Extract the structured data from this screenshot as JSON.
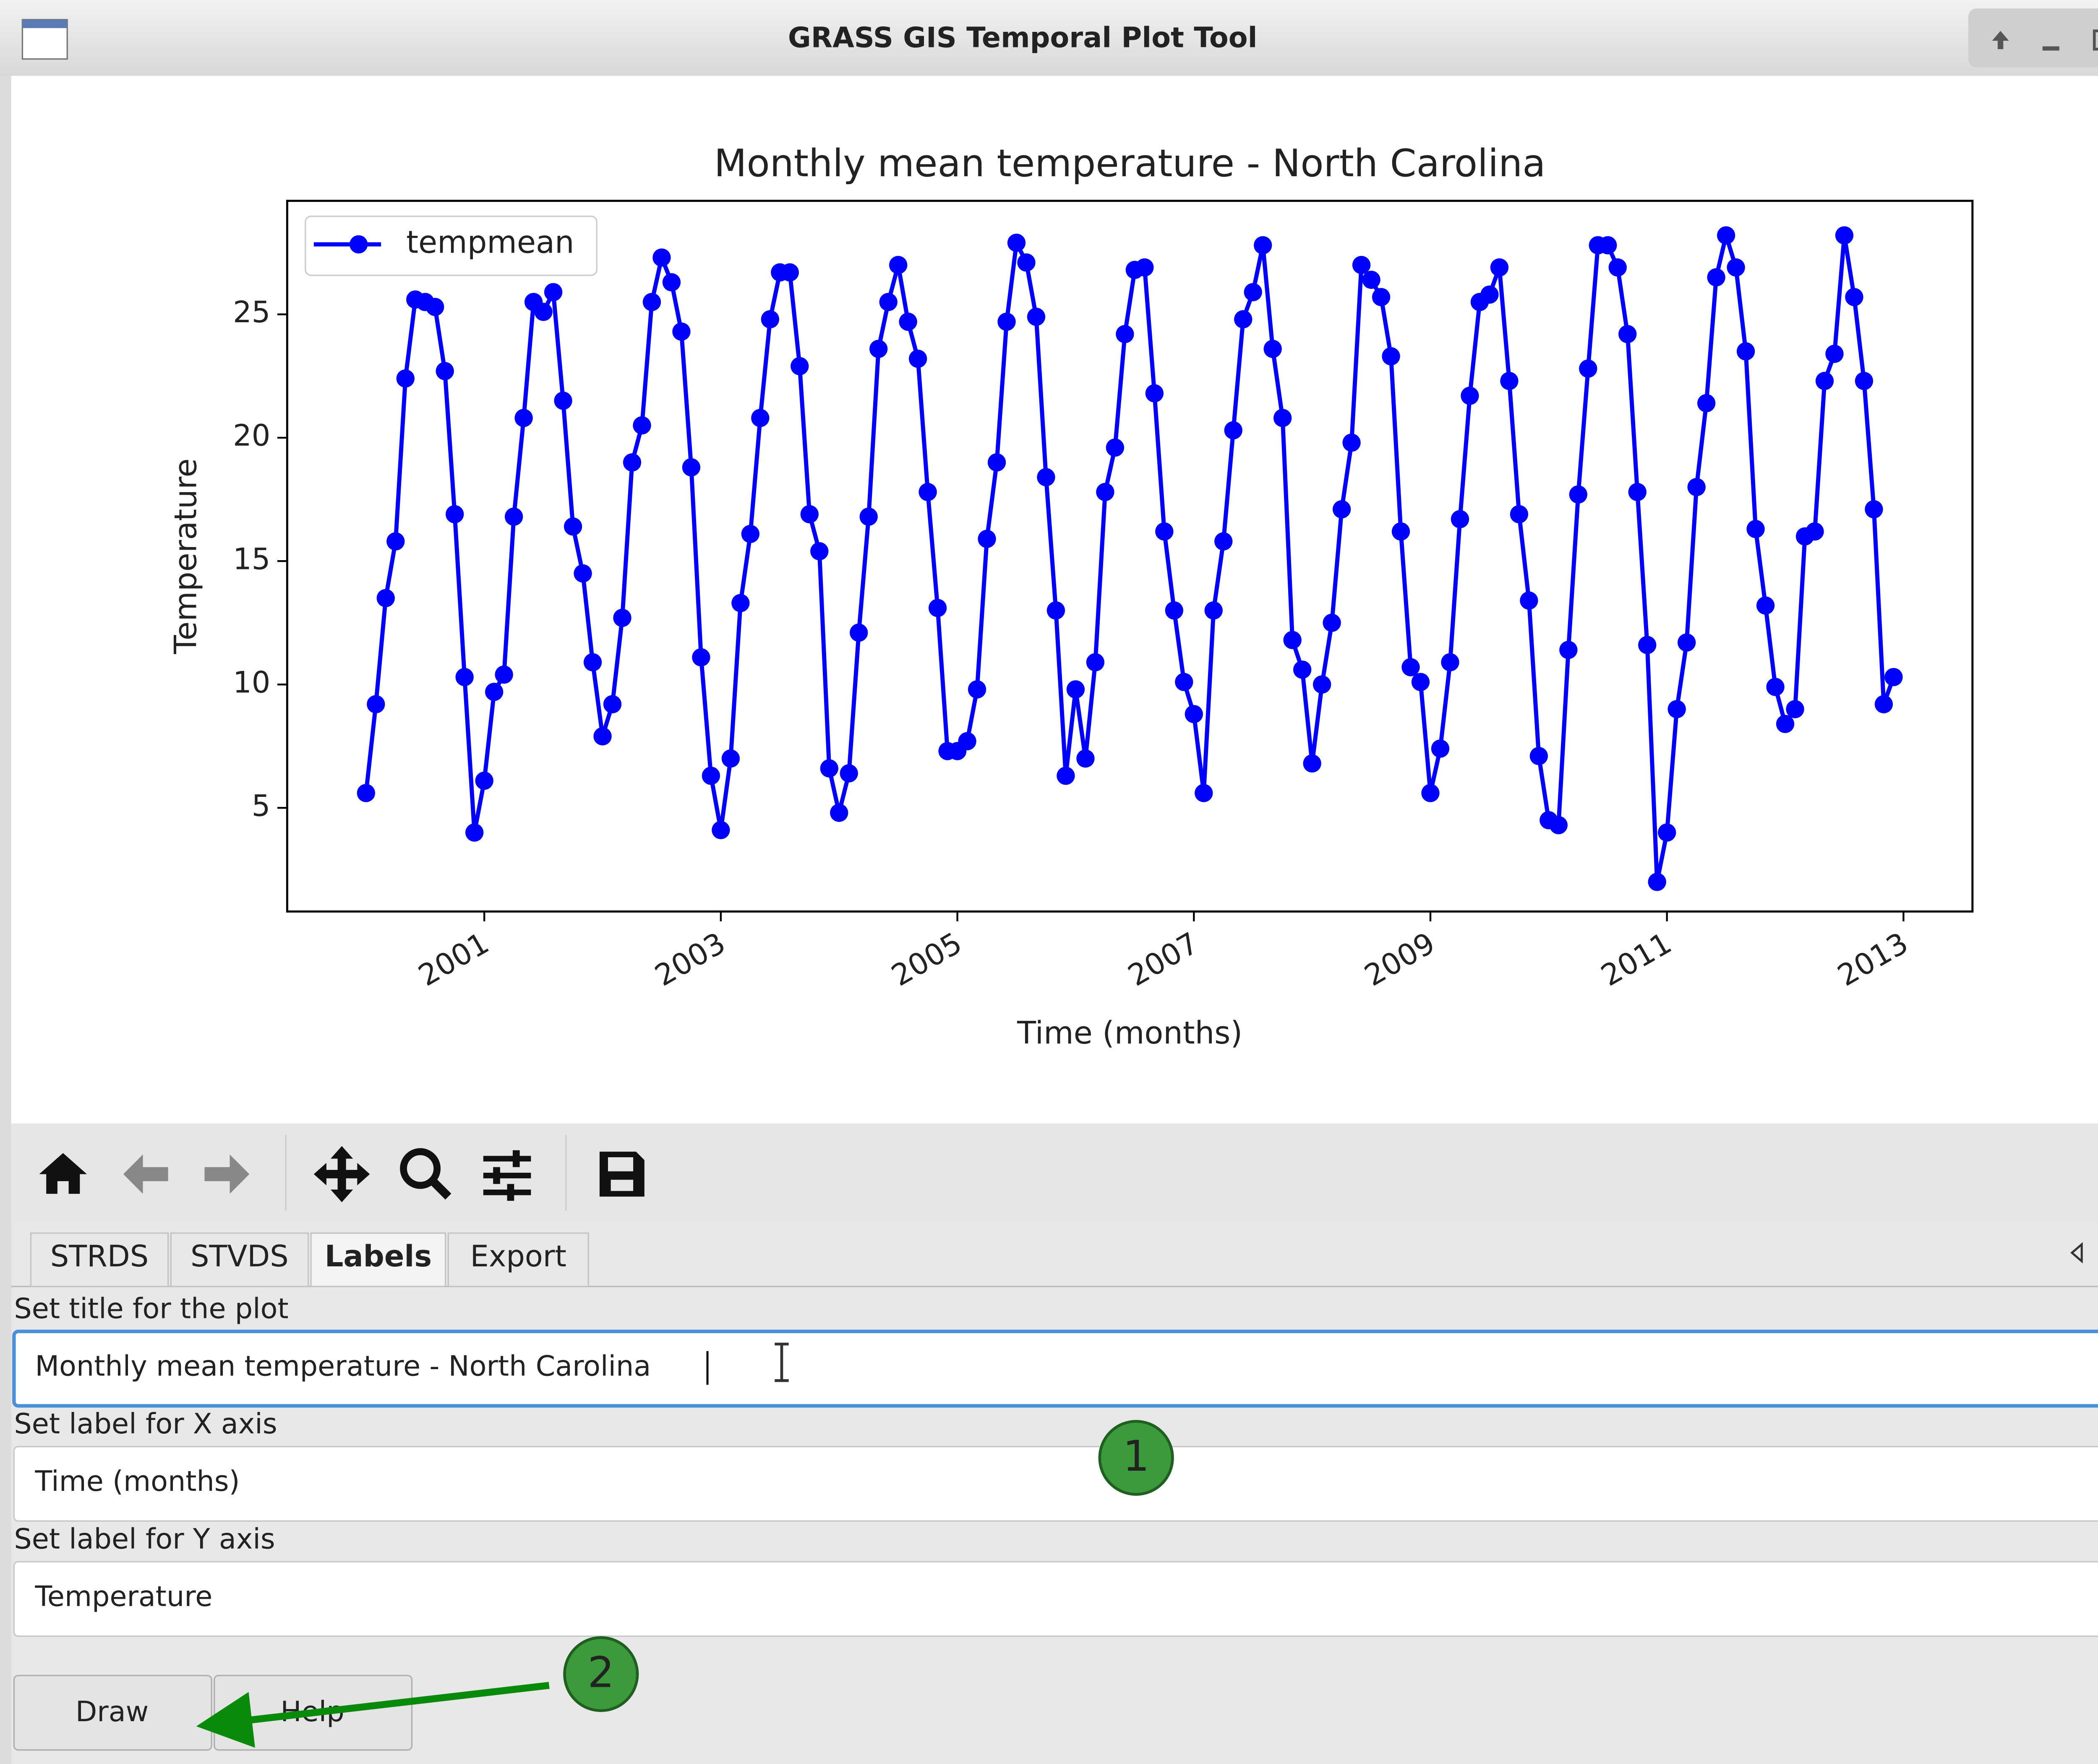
{
  "window": {
    "title": "GRASS GIS Temporal Plot Tool"
  },
  "chart_data": {
    "type": "line",
    "title": "Monthly mean temperature - North Carolina",
    "xlabel": "Time (months)",
    "ylabel": "Temperature",
    "x": [
      "2000-01",
      "2000-02",
      "2000-03",
      "2000-04",
      "2000-05",
      "2000-06",
      "2000-07",
      "2000-08",
      "2000-09",
      "2000-10",
      "2000-11",
      "2000-12",
      "2001-01",
      "2001-02",
      "2001-03",
      "2001-04",
      "2001-05",
      "2001-06",
      "2001-07",
      "2001-08",
      "2001-09",
      "2001-10",
      "2001-11",
      "2001-12",
      "2002-01",
      "2002-02",
      "2002-03",
      "2002-04",
      "2002-05",
      "2002-06",
      "2002-07",
      "2002-08",
      "2002-09",
      "2002-10",
      "2002-11",
      "2002-12",
      "2003-01",
      "2003-02",
      "2003-03",
      "2003-04",
      "2003-05",
      "2003-06",
      "2003-07",
      "2003-08",
      "2003-09",
      "2003-10",
      "2003-11",
      "2003-12",
      "2004-01",
      "2004-02",
      "2004-03",
      "2004-04",
      "2004-05",
      "2004-06",
      "2004-07",
      "2004-08",
      "2004-09",
      "2004-10",
      "2004-11",
      "2004-12",
      "2005-01",
      "2005-02",
      "2005-03",
      "2005-04",
      "2005-05",
      "2005-06",
      "2005-07",
      "2005-08",
      "2005-09",
      "2005-10",
      "2005-11",
      "2005-12",
      "2006-01",
      "2006-02",
      "2006-03",
      "2006-04",
      "2006-05",
      "2006-06",
      "2006-07",
      "2006-08",
      "2006-09",
      "2006-10",
      "2006-11",
      "2006-12",
      "2007-01",
      "2007-02",
      "2007-03",
      "2007-04",
      "2007-05",
      "2007-06",
      "2007-07",
      "2007-08",
      "2007-09",
      "2007-10",
      "2007-11",
      "2007-12",
      "2008-01",
      "2008-02",
      "2008-03",
      "2008-04",
      "2008-05",
      "2008-06",
      "2008-07",
      "2008-08",
      "2008-09",
      "2008-10",
      "2008-11",
      "2008-12",
      "2009-01",
      "2009-02",
      "2009-03",
      "2009-04",
      "2009-05",
      "2009-06",
      "2009-07",
      "2009-08",
      "2009-09",
      "2009-10",
      "2009-11",
      "2009-12",
      "2010-01",
      "2010-02",
      "2010-03",
      "2010-04",
      "2010-05",
      "2010-06",
      "2010-07",
      "2010-08",
      "2010-09",
      "2010-10",
      "2010-11",
      "2010-12",
      "2011-01",
      "2011-02",
      "2011-03",
      "2011-04",
      "2011-05",
      "2011-06",
      "2011-07",
      "2011-08",
      "2011-09",
      "2011-10",
      "2011-11",
      "2011-12",
      "2012-01",
      "2012-02",
      "2012-03",
      "2012-04",
      "2012-05",
      "2012-06",
      "2012-07",
      "2012-08",
      "2012-09",
      "2012-10",
      "2012-11",
      "2012-12"
    ],
    "series": [
      {
        "name": "tempmean",
        "color": "#0000ff",
        "values": [
          5.6,
          9.2,
          13.5,
          15.8,
          22.4,
          25.6,
          25.5,
          25.3,
          22.7,
          16.9,
          10.3,
          4.0,
          6.1,
          9.7,
          10.4,
          16.8,
          20.8,
          25.5,
          25.1,
          25.9,
          21.5,
          16.4,
          14.5,
          10.9,
          7.9,
          9.2,
          12.7,
          19.0,
          20.5,
          25.5,
          27.3,
          26.3,
          24.3,
          18.8,
          11.1,
          6.3,
          4.1,
          7.0,
          13.3,
          16.1,
          20.8,
          24.8,
          26.7,
          26.7,
          22.9,
          16.9,
          15.4,
          6.6,
          4.8,
          6.4,
          12.1,
          16.8,
          23.6,
          25.5,
          27.0,
          24.7,
          23.2,
          17.8,
          13.1,
          7.3,
          7.3,
          7.7,
          9.8,
          15.9,
          19.0,
          24.7,
          27.9,
          27.1,
          24.9,
          18.4,
          13.0,
          6.3,
          9.8,
          7.0,
          10.9,
          17.8,
          19.6,
          24.2,
          26.8,
          26.9,
          21.8,
          16.2,
          13.0,
          10.1,
          8.8,
          5.6,
          13.0,
          15.8,
          20.3,
          24.8,
          25.9,
          27.8,
          23.6,
          20.8,
          11.8,
          10.6,
          6.8,
          10.0,
          12.5,
          17.1,
          19.8,
          27.0,
          26.4,
          25.7,
          23.3,
          16.2,
          10.7,
          10.1,
          5.6,
          7.4,
          10.9,
          16.7,
          21.7,
          25.5,
          25.8,
          26.9,
          22.3,
          16.9,
          13.4,
          7.1,
          4.5,
          4.3,
          11.4,
          17.7,
          22.8,
          27.8,
          27.8,
          26.9,
          24.2,
          17.8,
          11.6,
          2.0,
          4.0,
          9.0,
          11.7,
          18.0,
          21.4,
          26.5,
          28.2,
          26.9,
          23.5,
          16.3,
          13.2,
          9.9,
          8.4,
          9.0,
          16.0,
          16.2,
          22.3,
          23.4,
          28.2,
          25.7,
          22.3,
          17.1,
          9.2,
          10.3
        ]
      }
    ],
    "xlim": [
      "1999-05",
      "2013-08"
    ],
    "ylim": [
      0.8,
      29.6
    ],
    "xticks": [
      "2001",
      "2003",
      "2005",
      "2007",
      "2009",
      "2011",
      "2013"
    ],
    "yticks": [
      5,
      10,
      15,
      20,
      25
    ],
    "legend": "upper left",
    "grid": false
  },
  "tabs": [
    "STRDS",
    "STVDS",
    "Labels",
    "Export"
  ],
  "form": {
    "fields": [
      {
        "label": "Set title for the plot",
        "value": "Monthly mean temperature - North Carolina"
      },
      {
        "label": "Set label for X axis",
        "value": "Time (months)"
      },
      {
        "label": "Set label for Y axis",
        "value": "Temperature"
      }
    ]
  },
  "buttons": [
    "Draw",
    "Help"
  ],
  "annotations": [
    "1",
    "2"
  ]
}
